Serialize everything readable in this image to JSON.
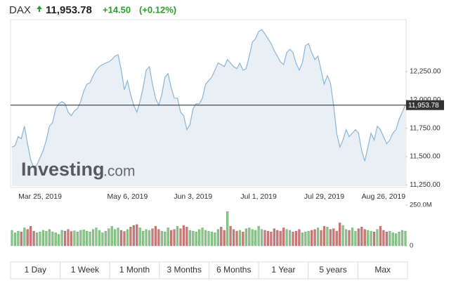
{
  "header": {
    "name": "DAX",
    "price": "11,953.78",
    "change": "+14.50",
    "change_pct": "(+0.12%)"
  },
  "chart_data": {
    "type": "area",
    "categories": [
      null,
      null,
      null,
      null,
      null,
      null,
      null,
      null,
      null,
      "Mar 25, 2019",
      null,
      null,
      null,
      null,
      null,
      null,
      null,
      null,
      null,
      null,
      null,
      null,
      null,
      null,
      null,
      null,
      null,
      null,
      null,
      null,
      null,
      null,
      null,
      null,
      null,
      null,
      null,
      "May 6, 2019",
      null,
      null,
      null,
      null,
      null,
      null,
      null,
      null,
      null,
      null,
      null,
      null,
      null,
      null,
      null,
      null,
      null,
      null,
      null,
      null,
      "Jun 3, 2019",
      null,
      null,
      null,
      null,
      null,
      null,
      null,
      null,
      null,
      null,
      null,
      null,
      null,
      null,
      null,
      null,
      null,
      null,
      null,
      null,
      "Jul 1, 2019",
      null,
      null,
      null,
      null,
      null,
      null,
      null,
      null,
      null,
      null,
      null,
      null,
      null,
      null,
      null,
      null,
      null,
      null,
      null,
      null,
      "Jul 29, 2019",
      null,
      null,
      null,
      null,
      null,
      null,
      null,
      null,
      null,
      null,
      null,
      null,
      null,
      null,
      null,
      null,
      null,
      null,
      "Aug 26, 2019",
      null,
      null,
      null,
      null,
      null,
      null,
      null
    ],
    "values": [
      11584,
      11596,
      11676,
      11658,
      11769,
      11614,
      11473,
      11399,
      11429,
      11491,
      11553,
      11645,
      11769,
      11800,
      11923,
      11966,
      11985,
      11966,
      11892,
      11861,
      11904,
      11923,
      11985,
      12077,
      12139,
      12151,
      12213,
      12262,
      12293,
      12312,
      12324,
      12336,
      12355,
      12386,
      12398,
      12262,
      12090,
      12170,
      12046,
      11954,
      11892,
      11985,
      12108,
      12262,
      12293,
      12139,
      12016,
      11954,
      12046,
      12201,
      12231,
      12108,
      12016,
      12016,
      11892,
      11861,
      11738,
      11781,
      11923,
      11966,
      11966,
      12016,
      12139,
      12170,
      12201,
      12262,
      12324,
      12312,
      12293,
      12355,
      12324,
      12293,
      12275,
      12324,
      12262,
      12275,
      12386,
      12509,
      12540,
      12602,
      12620,
      12583,
      12540,
      12497,
      12435,
      12386,
      12336,
      12312,
      12417,
      12447,
      12417,
      12324,
      12262,
      12324,
      12478,
      12497,
      12417,
      12355,
      12386,
      12262,
      12139,
      12213,
      12151,
      11954,
      11707,
      11584,
      11645,
      11738,
      11676,
      11707,
      11738,
      11707,
      11553,
      11460,
      11584,
      11707,
      11645,
      11769,
      11738,
      11676,
      11614,
      11645,
      11707,
      11738,
      11830,
      11892,
      11954
    ],
    "color": "#8ab4d8",
    "fill_color": "#e4edf4",
    "ylim": [
      11240,
      12695
    ],
    "yticks": [
      {
        "value": 11250,
        "label": "11,250.00"
      },
      {
        "value": 11500,
        "label": "11,500.00"
      },
      {
        "value": 11750,
        "label": "11,750.00"
      },
      {
        "value": 12000,
        "label": "12,000.00"
      },
      {
        "value": 12250,
        "label": "12,250.00"
      }
    ],
    "current": {
      "value": 11953.78,
      "label": "11,953.78"
    },
    "watermark": {
      "brand": "Investing",
      "suffix": ".com"
    },
    "volume": {
      "values": [
        95,
        80,
        90,
        85,
        110,
        100,
        120,
        90,
        80,
        85,
        95,
        90,
        100,
        85,
        80,
        70,
        95,
        90,
        100,
        88,
        92,
        85,
        95,
        98,
        90,
        85,
        100,
        110,
        95,
        80,
        90,
        105,
        120,
        100,
        110,
        95,
        88,
        100,
        115,
        125,
        130,
        110,
        90,
        100,
        95,
        105,
        120,
        100,
        90,
        85,
        110,
        95,
        100,
        120,
        105,
        125,
        115,
        95,
        90,
        85,
        100,
        110,
        95,
        90,
        85,
        80,
        100,
        115,
        95,
        210,
        120,
        100,
        90,
        95,
        85,
        105,
        110,
        100,
        95,
        120,
        100,
        95,
        90,
        85,
        105,
        95,
        90,
        110,
        100,
        95,
        85,
        90,
        100,
        80,
        85,
        90,
        95,
        100,
        110,
        95,
        120,
        115,
        100,
        105,
        90,
        140,
        125,
        100,
        95,
        110,
        90,
        105,
        115,
        100,
        95,
        90,
        85,
        100,
        120,
        95,
        85,
        90,
        80,
        75,
        85,
        95,
        90
      ],
      "ylim": [
        0,
        250
      ],
      "yticks": [
        {
          "value": 250,
          "label": "250.0M"
        },
        0
      ],
      "up_color": "#8cc58c",
      "down_color": "#c97a7a"
    }
  },
  "range_buttons": [
    "1 Day",
    "1 Week",
    "1 Month",
    "3 Months",
    "6 Months",
    "1 Year",
    "5 years",
    "Max"
  ]
}
